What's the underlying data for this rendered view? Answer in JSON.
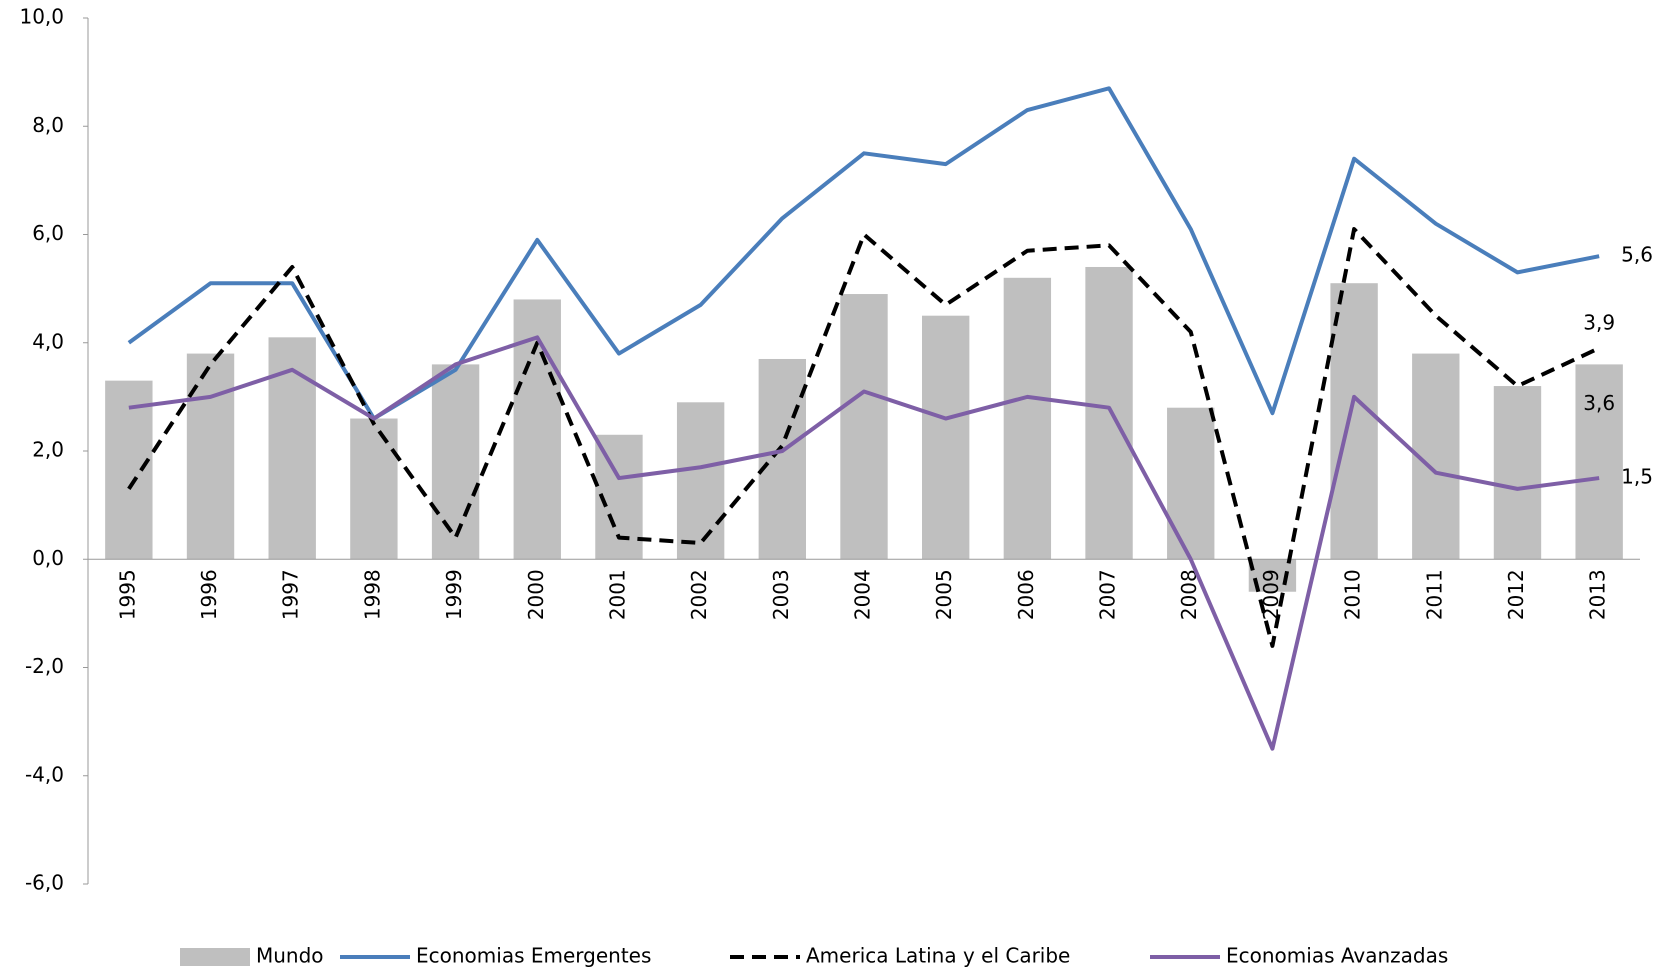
{
  "chart_data": {
    "type": "bar-line",
    "categories": [
      "1995",
      "1996",
      "1997",
      "1998",
      "1999",
      "2000",
      "2001",
      "2002",
      "2003",
      "2004",
      "2005",
      "2006",
      "2007",
      "2008",
      "2009",
      "2010",
      "2011",
      "2012",
      "2013"
    ],
    "series": [
      {
        "name": "Mundo",
        "type": "bar",
        "color": "#bfbfbf",
        "values": [
          3.3,
          3.8,
          4.1,
          2.6,
          3.6,
          4.8,
          2.3,
          2.9,
          3.7,
          4.9,
          4.5,
          5.2,
          5.4,
          2.8,
          -0.6,
          5.1,
          3.8,
          3.2,
          3.6
        ],
        "value_labels": [
          null,
          null,
          null,
          null,
          null,
          null,
          null,
          null,
          null,
          null,
          null,
          null,
          null,
          null,
          null,
          null,
          null,
          null,
          "3,6"
        ]
      },
      {
        "name": "Economias Emergentes",
        "type": "line",
        "color": "#4a7ebb",
        "values": [
          4.0,
          5.1,
          5.1,
          2.6,
          3.5,
          5.9,
          3.8,
          4.7,
          6.3,
          7.5,
          7.3,
          8.3,
          8.7,
          6.1,
          2.7,
          7.4,
          6.2,
          5.3,
          5.6
        ],
        "value_labels": [
          null,
          null,
          null,
          null,
          null,
          null,
          null,
          null,
          null,
          null,
          null,
          null,
          null,
          null,
          null,
          null,
          null,
          null,
          "5,6"
        ]
      },
      {
        "name": "America Latina y el Caribe",
        "type": "line",
        "dash": true,
        "color": "#000000",
        "values": [
          1.3,
          3.6,
          5.4,
          2.5,
          0.4,
          4.0,
          0.4,
          0.3,
          2.1,
          6.0,
          4.7,
          5.7,
          5.8,
          4.2,
          -1.6,
          6.1,
          4.5,
          3.2,
          3.9
        ],
        "value_labels": [
          null,
          null,
          null,
          null,
          null,
          null,
          null,
          null,
          null,
          null,
          null,
          null,
          null,
          null,
          null,
          null,
          null,
          null,
          "3,9"
        ]
      },
      {
        "name": "Economias Avanzadas",
        "type": "line",
        "color": "#7e5fa6",
        "values": [
          2.8,
          3.0,
          3.5,
          2.6,
          3.6,
          4.1,
          1.5,
          1.7,
          2.0,
          3.1,
          2.6,
          3.0,
          2.8,
          0.0,
          -3.5,
          3.0,
          1.6,
          1.3,
          1.5
        ],
        "value_labels": [
          null,
          null,
          null,
          null,
          null,
          null,
          null,
          null,
          null,
          null,
          null,
          null,
          null,
          null,
          null,
          null,
          null,
          null,
          "1,5"
        ]
      }
    ],
    "ylim": [
      -6,
      10
    ],
    "yticks": [
      {
        "value": -6,
        "label": "-6,0"
      },
      {
        "value": -4,
        "label": "-4,0"
      },
      {
        "value": -2,
        "label": "-2,0"
      },
      {
        "value": 0,
        "label": "0,0"
      },
      {
        "value": 2,
        "label": "2,0"
      },
      {
        "value": 4,
        "label": "4,0"
      },
      {
        "value": 6,
        "label": "6,0"
      },
      {
        "value": 8,
        "label": "8,0"
      },
      {
        "value": 10,
        "label": "10,0"
      }
    ],
    "grid": false,
    "legend": "bottom"
  }
}
